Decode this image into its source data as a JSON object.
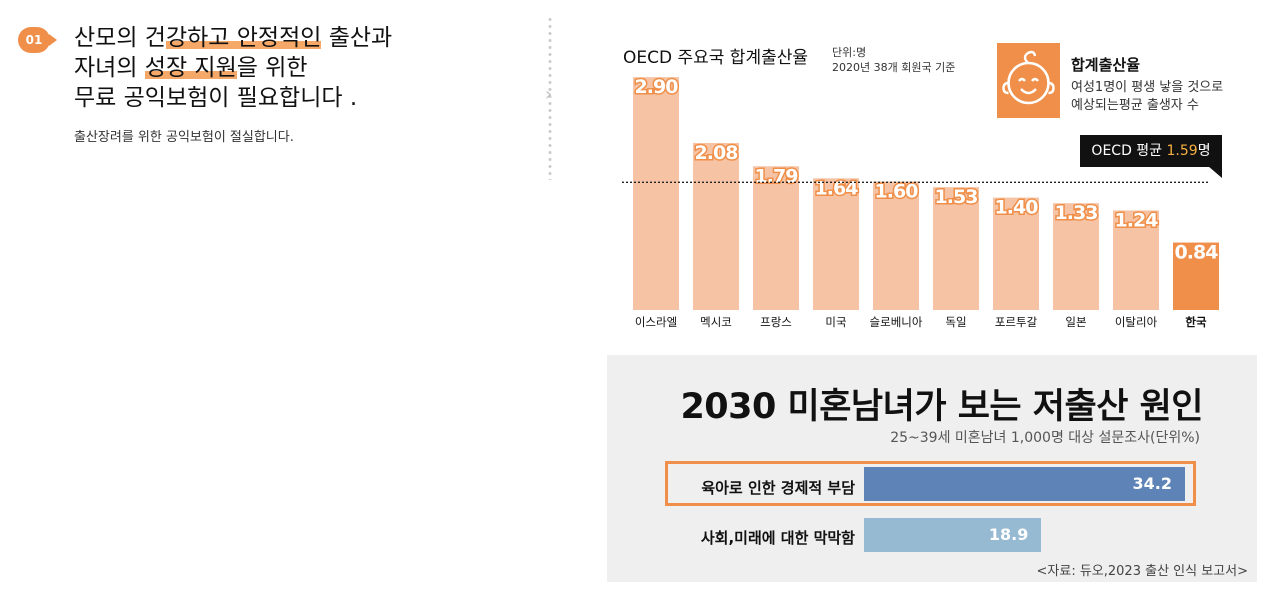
{
  "intro": {
    "number": "01",
    "lines": [
      {
        "plain1": "산모의 건",
        "hl": "강하고 안정적인",
        "plain2": " 출산과"
      },
      {
        "plain1": "자녀의 ",
        "hl": "성장 지원",
        "plain2": "을 위한"
      },
      {
        "plain1": "무료 공익보험이 필요합니다 .",
        "hl": "",
        "plain2": ""
      }
    ],
    "subline": "출산장려를 위한 공익보험이 절실합니다."
  },
  "chevron": "›",
  "chart_data": [
    {
      "type": "bar",
      "title": "OECD 주요국 합계출산율",
      "unit": "단위:명",
      "basis": "2020년 38개 회원국 기준",
      "categories": [
        "이스라엘",
        "멕시코",
        "프랑스",
        "미국",
        "슬로베니아",
        "독일",
        "포르투갈",
        "일본",
        "이탈리아",
        "한국"
      ],
      "values": [
        2.9,
        2.08,
        1.79,
        1.64,
        1.6,
        1.53,
        1.4,
        1.33,
        1.24,
        0.84
      ],
      "value_labels": [
        "2.90",
        "2.08",
        "1.79",
        "1.64",
        "1.60",
        "1.53",
        "1.40",
        "1.33",
        "1.24",
        "0.84"
      ],
      "highlight_category": "한국",
      "reference_line": {
        "value": 1.59,
        "prefix": "OECD 평균 ",
        "value_label": "1.59",
        "suffix": "명"
      },
      "legend": {
        "icon": "baby-face-icon",
        "title": "합계출산율",
        "desc_line1": "여성1명이 평생 낳을 것으로",
        "desc_line2": "예상되는평균 출생자 수"
      },
      "colors": {
        "bar": "#f6c3a4",
        "highlight": "#ef8f4a",
        "label": "#ffffff",
        "label_outline": "#ef8f4a"
      }
    },
    {
      "type": "bar",
      "orientation": "horizontal",
      "title": "2030 미혼남녀가 보는 저출산 원인",
      "subtitle": "25~39세 미혼남녀 1,000명 대상 설문조사(단위%)",
      "categories": [
        "육아로 인한 경제적 부담",
        "사회,미래에 대한 막막함"
      ],
      "values": [
        34.2,
        18.9
      ],
      "value_labels": [
        "34.2",
        "18.9"
      ],
      "highlight_category": "육아로 인한 경제적 부담",
      "source": "<자료: 듀오,2023 출산 인식 보고서>",
      "colors": {
        "bar1": "#5e84b7",
        "bar2": "#97bad3",
        "frame": "#ef8f4a"
      }
    }
  ]
}
